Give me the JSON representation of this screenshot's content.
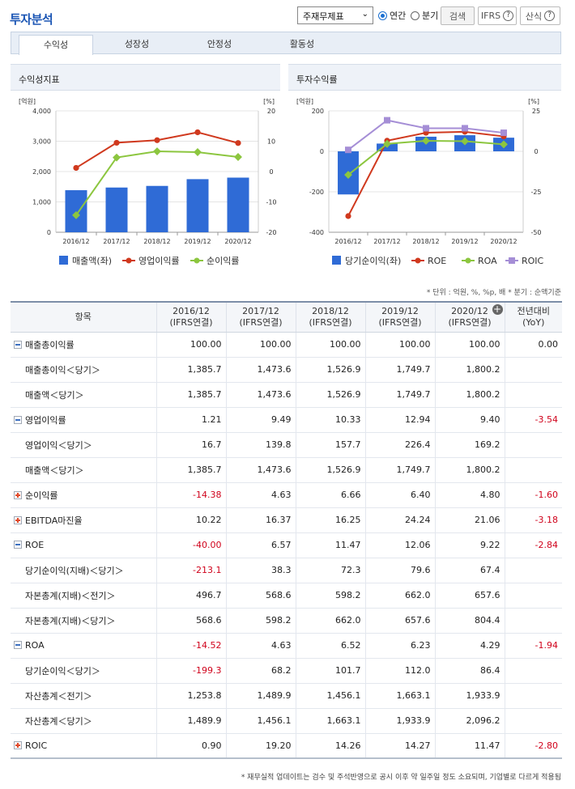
{
  "header": {
    "title": "투자분석",
    "select_value": "주재무제표",
    "radio_annual": "연간",
    "radio_quarter": "분기",
    "search_button": "검색",
    "ifrs_button": "IFRS",
    "formula_button": "산식"
  },
  "tabs": [
    "수익성",
    "성장성",
    "안정성",
    "활동성"
  ],
  "panels": {
    "left_title": "수익성지표",
    "right_title": "투자수익률"
  },
  "chart_data": [
    {
      "type": "bar+line",
      "title": "수익성지표",
      "left_unit": "[억원]",
      "right_unit": "[%]",
      "categories": [
        "2016/12",
        "2017/12",
        "2018/12",
        "2019/12",
        "2020/12"
      ],
      "ylim_left": [
        0,
        4000
      ],
      "yticks_left": [
        "4,000",
        "3,000",
        "2,000",
        "1,000",
        "0"
      ],
      "ylim_right": [
        -20,
        20
      ],
      "yticks_right": [
        "20",
        "10",
        "0",
        "-10",
        "-20"
      ],
      "series": [
        {
          "name": "매출액(좌)",
          "kind": "bar",
          "axis": "left",
          "color": "#2f6bd6",
          "values": [
            1385.7,
            1473.6,
            1526.9,
            1749.7,
            1800.2
          ]
        },
        {
          "name": "영업이익률",
          "kind": "line",
          "axis": "right",
          "color": "#d0391e",
          "values": [
            1.21,
            9.49,
            10.33,
            12.94,
            9.4
          ]
        },
        {
          "name": "순이익률",
          "kind": "line",
          "axis": "right",
          "color": "#8cc63f",
          "values": [
            -14.38,
            4.63,
            6.66,
            6.4,
            4.8
          ]
        }
      ]
    },
    {
      "type": "bar+line",
      "title": "투자수익률",
      "left_unit": "[억원]",
      "right_unit": "[%]",
      "categories": [
        "2016/12",
        "2017/12",
        "2018/12",
        "2019/12",
        "2020/12"
      ],
      "ylim_left": [
        -400,
        200
      ],
      "yticks_left": [
        "200",
        "0",
        "-200",
        "-400"
      ],
      "ylim_right": [
        -50,
        25
      ],
      "yticks_right": [
        "25",
        "0",
        "-25",
        "-50"
      ],
      "series": [
        {
          "name": "당기순이익(좌)",
          "kind": "bar",
          "axis": "left",
          "color": "#2f6bd6",
          "values": [
            -213.1,
            38.3,
            72.3,
            79.6,
            67.4
          ]
        },
        {
          "name": "ROE",
          "kind": "line",
          "axis": "right",
          "color": "#d0391e",
          "values": [
            -40.0,
            6.57,
            11.47,
            12.06,
            9.22
          ]
        },
        {
          "name": "ROA",
          "kind": "line",
          "axis": "right",
          "color": "#8cc63f",
          "values": [
            -14.52,
            4.63,
            6.52,
            6.23,
            4.29
          ]
        },
        {
          "name": "ROIC",
          "kind": "line",
          "axis": "right",
          "color": "#a58ed6",
          "values": [
            0.9,
            19.2,
            14.26,
            14.27,
            11.47
          ]
        }
      ]
    }
  ],
  "unit_note": "* 단위 : 억원, %, %p, 배   * 분기 : 순액기준",
  "table": {
    "headers": [
      {
        "l1": "항목",
        "l2": ""
      },
      {
        "l1": "2016/12",
        "l2": "(IFRS연결)"
      },
      {
        "l1": "2017/12",
        "l2": "(IFRS연결)"
      },
      {
        "l1": "2018/12",
        "l2": "(IFRS연결)"
      },
      {
        "l1": "2019/12",
        "l2": "(IFRS연결)"
      },
      {
        "l1": "2020/12",
        "l2": "(IFRS연결)"
      },
      {
        "l1": "전년대비",
        "l2": "(YoY)"
      }
    ],
    "rows": [
      {
        "label": "매출총이익률",
        "toggle": "minus",
        "cells": [
          "100.00",
          "100.00",
          "100.00",
          "100.00",
          "100.00",
          "0.00"
        ]
      },
      {
        "label": "매출총이익＜당기＞",
        "toggle": "",
        "cells": [
          "1,385.7",
          "1,473.6",
          "1,526.9",
          "1,749.7",
          "1,800.2",
          ""
        ]
      },
      {
        "label": "매출액＜당기＞",
        "toggle": "",
        "cells": [
          "1,385.7",
          "1,473.6",
          "1,526.9",
          "1,749.7",
          "1,800.2",
          ""
        ]
      },
      {
        "label": "영업이익률",
        "toggle": "minus",
        "cells": [
          "1.21",
          "9.49",
          "10.33",
          "12.94",
          "9.40",
          "-3.54"
        ]
      },
      {
        "label": "영업이익＜당기＞",
        "toggle": "",
        "cells": [
          "16.7",
          "139.8",
          "157.7",
          "226.4",
          "169.2",
          ""
        ]
      },
      {
        "label": "매출액＜당기＞",
        "toggle": "",
        "cells": [
          "1,385.7",
          "1,473.6",
          "1,526.9",
          "1,749.7",
          "1,800.2",
          ""
        ]
      },
      {
        "label": "순이익률",
        "toggle": "plus",
        "cells": [
          "-14.38",
          "4.63",
          "6.66",
          "6.40",
          "4.80",
          "-1.60"
        ]
      },
      {
        "label": "EBITDA마진율",
        "toggle": "plus",
        "cells": [
          "10.22",
          "16.37",
          "16.25",
          "24.24",
          "21.06",
          "-3.18"
        ]
      },
      {
        "label": "ROE",
        "toggle": "minus",
        "cells": [
          "-40.00",
          "6.57",
          "11.47",
          "12.06",
          "9.22",
          "-2.84"
        ]
      },
      {
        "label": "당기순이익(지배)＜당기＞",
        "toggle": "",
        "cells": [
          "-213.1",
          "38.3",
          "72.3",
          "79.6",
          "67.4",
          ""
        ]
      },
      {
        "label": "자본총계(지배)＜전기＞",
        "toggle": "",
        "cells": [
          "496.7",
          "568.6",
          "598.2",
          "662.0",
          "657.6",
          ""
        ]
      },
      {
        "label": "자본총계(지배)＜당기＞",
        "toggle": "",
        "cells": [
          "568.6",
          "598.2",
          "662.0",
          "657.6",
          "804.4",
          ""
        ]
      },
      {
        "label": "ROA",
        "toggle": "minus",
        "cells": [
          "-14.52",
          "4.63",
          "6.52",
          "6.23",
          "4.29",
          "-1.94"
        ]
      },
      {
        "label": "당기순이익＜당기＞",
        "toggle": "",
        "cells": [
          "-199.3",
          "68.2",
          "101.7",
          "112.0",
          "86.4",
          ""
        ]
      },
      {
        "label": "자산총계＜전기＞",
        "toggle": "",
        "cells": [
          "1,253.8",
          "1,489.9",
          "1,456.1",
          "1,663.1",
          "1,933.9",
          ""
        ]
      },
      {
        "label": "자산총계＜당기＞",
        "toggle": "",
        "cells": [
          "1,489.9",
          "1,456.1",
          "1,663.1",
          "1,933.9",
          "2,096.2",
          ""
        ]
      },
      {
        "label": "ROIC",
        "toggle": "plus",
        "cells": [
          "0.90",
          "19.20",
          "14.26",
          "14.27",
          "11.47",
          "-2.80"
        ]
      }
    ]
  },
  "footnote": "* 재무실적 업데이트는 검수 및 주석반영으로 공시 이후 약 일주일 정도 소요되며, 기업별로 다르게 적용됨"
}
